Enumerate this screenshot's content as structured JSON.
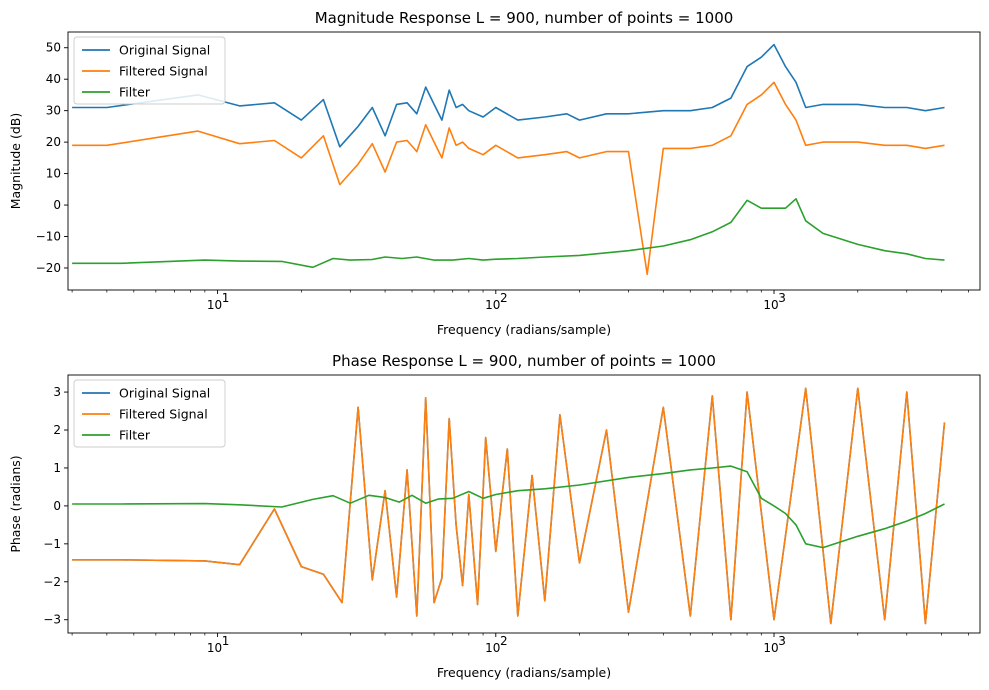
{
  "chart_data": [
    {
      "type": "line",
      "title": "Magnitude Response L = 900, number of points = 1000",
      "xlabel": "Frequency (radians/sample)",
      "ylabel": "Magnitude (dB)",
      "xscale": "log",
      "xlim": [
        2.9,
        5500
      ],
      "ylim": [
        -27,
        55
      ],
      "xticks": [
        10,
        100,
        1000
      ],
      "xtick_labels": [
        "10",
        "10",
        "10"
      ],
      "xtick_exponents": [
        "1",
        "2",
        "3"
      ],
      "yticks": [
        -20,
        -10,
        0,
        10,
        20,
        30,
        40,
        50
      ],
      "ytick_labels": [
        "−20",
        "−10",
        "0",
        "10",
        "20",
        "30",
        "40",
        "50"
      ],
      "legend": "top-left",
      "grid": false,
      "series": [
        {
          "name": "Original Signal",
          "color": "#1f77b4",
          "x": [
            3,
            4,
            8.5,
            12,
            16,
            20,
            24,
            27.5,
            32,
            36,
            40,
            44,
            48,
            52,
            56,
            60,
            64,
            68,
            72,
            76,
            80,
            90,
            100,
            120,
            150,
            180,
            200,
            250,
            300,
            400,
            500,
            600,
            700,
            800,
            900,
            1000,
            1100,
            1200,
            1300,
            1500,
            2000,
            2500,
            3000,
            3500,
            4100
          ],
          "values": [
            31,
            31,
            35,
            31.5,
            32.5,
            27,
            33.5,
            18.5,
            25,
            31,
            22,
            32,
            32.5,
            29,
            37.5,
            32,
            27,
            36.5,
            31,
            32,
            30,
            28,
            31,
            27,
            28,
            29,
            27,
            29,
            29,
            30,
            30,
            31,
            34,
            44,
            47,
            51,
            44,
            39,
            31,
            32,
            32,
            31,
            31,
            30,
            31
          ]
        },
        {
          "name": "Filtered Signal",
          "color": "#ff7f0e",
          "x": [
            3,
            4,
            8.5,
            12,
            16,
            20,
            24,
            27.5,
            32,
            36,
            40,
            44,
            48,
            52,
            56,
            60,
            64,
            68,
            72,
            76,
            80,
            90,
            100,
            120,
            150,
            180,
            200,
            250,
            300,
            350,
            400,
            500,
            600,
            700,
            800,
            900,
            1000,
            1100,
            1200,
            1300,
            1500,
            2000,
            2500,
            3000,
            3500,
            4100
          ],
          "values": [
            19,
            19,
            23.5,
            19.5,
            20.5,
            15,
            22,
            6.5,
            13,
            19.5,
            10.5,
            20,
            20.5,
            17,
            25.5,
            20,
            15,
            24.5,
            19,
            20,
            18,
            16,
            19,
            15,
            16,
            17,
            15,
            17,
            17,
            -22,
            18,
            18,
            19,
            22,
            32,
            35,
            39,
            32,
            27,
            19,
            20,
            20,
            19,
            19,
            18,
            19
          ]
        },
        {
          "name": "Filter",
          "color": "#2ca02c",
          "x": [
            3,
            4.5,
            9,
            12,
            17,
            22,
            26,
            30,
            36,
            40,
            46,
            52,
            60,
            70,
            80,
            90,
            100,
            120,
            150,
            200,
            300,
            400,
            500,
            600,
            700,
            800,
            900,
            1000,
            1100,
            1200,
            1300,
            1500,
            2000,
            2500,
            3000,
            3500,
            4100
          ],
          "values": [
            -18.5,
            -18.5,
            -17.5,
            -17.8,
            -17.9,
            -19.8,
            -17,
            -17.5,
            -17.3,
            -16.5,
            -17,
            -16.5,
            -17.5,
            -17.5,
            -17,
            -17.5,
            -17.2,
            -17,
            -16.5,
            -16,
            -14.5,
            -13,
            -11,
            -8.5,
            -5.5,
            1.5,
            -1,
            -1,
            -1,
            2,
            -5,
            -9,
            -12.5,
            -14.5,
            -15.5,
            -17,
            -17.5
          ]
        }
      ]
    },
    {
      "type": "line",
      "title": "Phase Response L = 900, number of points = 1000",
      "xlabel": "Frequency (radians/sample)",
      "ylabel": "Phase (radians)",
      "xscale": "log",
      "xlim": [
        2.9,
        5500
      ],
      "ylim": [
        -3.35,
        3.45
      ],
      "xticks": [
        10,
        100,
        1000
      ],
      "xtick_labels": [
        "10",
        "10",
        "10"
      ],
      "xtick_exponents": [
        "1",
        "2",
        "3"
      ],
      "yticks": [
        -3,
        -2,
        -1,
        0,
        1,
        2,
        3
      ],
      "ytick_labels": [
        "−3",
        "−2",
        "−1",
        "0",
        "1",
        "2",
        "3"
      ],
      "legend": "top-left",
      "grid": false,
      "series": [
        {
          "name": "Original Signal",
          "color": "#1f77b4",
          "x": [
            3,
            4.5,
            9,
            12,
            16,
            20,
            24,
            28,
            32,
            36,
            40,
            44,
            48,
            52,
            56,
            60,
            64,
            68,
            72,
            76,
            80,
            86,
            92,
            100,
            110,
            120,
            135,
            150,
            170,
            200,
            250,
            300,
            400,
            500,
            600,
            700,
            800,
            1000,
            1300,
            1600,
            2000,
            2500,
            3000,
            3500,
            4100
          ],
          "values": [
            -1.42,
            -1.42,
            -1.45,
            -1.55,
            -0.08,
            -1.6,
            -1.8,
            -2.55,
            2.6,
            -1.95,
            0.4,
            -2.4,
            0.95,
            -2.9,
            2.85,
            -2.55,
            -1.9,
            2.3,
            -0.5,
            -2.1,
            0.3,
            -2.6,
            1.8,
            -1.2,
            1.5,
            -2.9,
            0.8,
            -2.5,
            2.4,
            -1.5,
            2.0,
            -2.8,
            2.6,
            -2.9,
            2.9,
            -3.0,
            3.0,
            -3.0,
            3.1,
            -3.1,
            3.1,
            -3.0,
            3.0,
            -3.1,
            2.2
          ]
        },
        {
          "name": "Filtered Signal",
          "color": "#ff7f0e",
          "x": [
            3,
            4.5,
            9,
            12,
            16,
            20,
            24,
            28,
            32,
            36,
            40,
            44,
            48,
            52,
            56,
            60,
            64,
            68,
            72,
            76,
            80,
            86,
            92,
            100,
            110,
            120,
            135,
            150,
            170,
            200,
            250,
            300,
            400,
            500,
            600,
            700,
            800,
            1000,
            1300,
            1600,
            2000,
            2500,
            3000,
            3500,
            4100
          ],
          "values": [
            -1.42,
            -1.42,
            -1.45,
            -1.55,
            -0.08,
            -1.6,
            -1.8,
            -2.55,
            2.6,
            -1.95,
            0.4,
            -2.4,
            0.95,
            -2.9,
            2.85,
            -2.55,
            -1.9,
            2.3,
            -0.5,
            -2.1,
            0.3,
            -2.6,
            1.8,
            -1.2,
            1.5,
            -2.9,
            0.8,
            -2.5,
            2.4,
            -1.5,
            2.0,
            -2.8,
            2.6,
            -2.9,
            2.9,
            -3.0,
            3.0,
            -3.0,
            3.1,
            -3.1,
            3.1,
            -3.0,
            3.0,
            -3.1,
            2.2
          ]
        },
        {
          "name": "Filter",
          "color": "#2ca02c",
          "x": [
            3,
            4.5,
            9,
            12,
            17,
            22,
            26,
            30,
            35,
            40,
            45,
            50,
            56,
            62,
            70,
            80,
            90,
            100,
            120,
            150,
            200,
            300,
            400,
            500,
            600,
            700,
            800,
            900,
            1000,
            1100,
            1200,
            1300,
            1500,
            2000,
            2500,
            3000,
            3500,
            4100
          ],
          "values": [
            0.05,
            0.05,
            0.06,
            0.03,
            -0.03,
            0.17,
            0.27,
            0.07,
            0.28,
            0.22,
            0.1,
            0.28,
            0.07,
            0.18,
            0.2,
            0.38,
            0.2,
            0.3,
            0.4,
            0.45,
            0.55,
            0.75,
            0.85,
            0.95,
            1.0,
            1.05,
            0.9,
            0.2,
            0.0,
            -0.2,
            -0.5,
            -1.0,
            -1.1,
            -0.8,
            -0.6,
            -0.4,
            -0.2,
            0.05
          ]
        }
      ]
    }
  ]
}
